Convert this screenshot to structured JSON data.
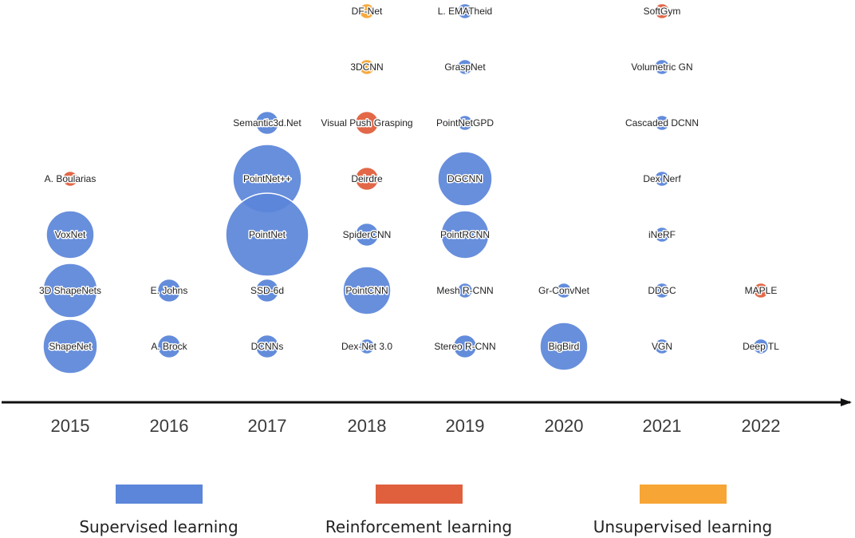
{
  "colors": {
    "supervised": "#5b86d9",
    "reinforcement": "#e0603e",
    "unsupervised": "#f7a534",
    "axis": "#111111"
  },
  "years": [
    "2015",
    "2016",
    "2017",
    "2018",
    "2019",
    "2020",
    "2021",
    "2022"
  ],
  "legend": [
    {
      "label": "Supervised learning",
      "category": "supervised"
    },
    {
      "label": "Reinforcement learning",
      "category": "reinforcement"
    },
    {
      "label": "Unsupervised learning",
      "category": "unsupervised"
    }
  ],
  "works": [
    {
      "label": "A. Boularias",
      "year": "2015",
      "row": 3,
      "category": "reinforcement",
      "size": "tiny"
    },
    {
      "label": "VoxNet",
      "year": "2015",
      "row": 4,
      "category": "supervised",
      "size": "medium"
    },
    {
      "label": "3D ShapeNets",
      "year": "2015",
      "row": 5,
      "category": "supervised",
      "size": "large"
    },
    {
      "label": "ShapeNet",
      "year": "2015",
      "row": 6,
      "category": "supervised",
      "size": "large"
    },
    {
      "label": "E. Johns",
      "year": "2016",
      "row": 5,
      "category": "supervised",
      "size": "small"
    },
    {
      "label": "A. Brock",
      "year": "2016",
      "row": 6,
      "category": "supervised",
      "size": "small"
    },
    {
      "label": "Semantic3d.Net",
      "year": "2017",
      "row": 2,
      "category": "supervised",
      "size": "small"
    },
    {
      "label": "PointNet++",
      "year": "2017",
      "row": 3,
      "category": "supervised",
      "size": "xlarge"
    },
    {
      "label": "PointNet",
      "year": "2017",
      "row": 4,
      "category": "supervised",
      "size": "xxlarge"
    },
    {
      "label": "SSD-6d",
      "year": "2017",
      "row": 5,
      "category": "supervised",
      "size": "small"
    },
    {
      "label": "DCNNs",
      "year": "2017",
      "row": 6,
      "category": "supervised",
      "size": "small"
    },
    {
      "label": "DF-Net",
      "year": "2018",
      "row": 0,
      "category": "unsupervised",
      "size": "tiny"
    },
    {
      "label": "3DCNN",
      "year": "2018",
      "row": 1,
      "category": "unsupervised",
      "size": "tiny"
    },
    {
      "label": "Visual Push Grasping",
      "year": "2018",
      "row": 2,
      "category": "reinforcement",
      "size": "small"
    },
    {
      "label": "Deirdre",
      "year": "2018",
      "row": 3,
      "category": "reinforcement",
      "size": "small"
    },
    {
      "label": "SpiderCNN",
      "year": "2018",
      "row": 4,
      "category": "supervised",
      "size": "small"
    },
    {
      "label": "PointCNN",
      "year": "2018",
      "row": 5,
      "category": "supervised",
      "size": "medium"
    },
    {
      "label": "Dex-Net 3.0",
      "year": "2018",
      "row": 6,
      "category": "supervised",
      "size": "tiny"
    },
    {
      "label": "L. EMATheid",
      "year": "2019",
      "row": 0,
      "category": "supervised",
      "size": "tiny"
    },
    {
      "label": "GraspNet",
      "year": "2019",
      "row": 1,
      "category": "supervised",
      "size": "tiny"
    },
    {
      "label": "PointNetGPD",
      "year": "2019",
      "row": 2,
      "category": "supervised",
      "size": "tiny"
    },
    {
      "label": "DGCNN",
      "year": "2019",
      "row": 3,
      "category": "supervised",
      "size": "large"
    },
    {
      "label": "PointRCNN",
      "year": "2019",
      "row": 4,
      "category": "supervised",
      "size": "medium"
    },
    {
      "label": "Mesh R-CNN",
      "year": "2019",
      "row": 5,
      "category": "supervised",
      "size": "tiny"
    },
    {
      "label": "Stereo R-CNN",
      "year": "2019",
      "row": 6,
      "category": "supervised",
      "size": "small"
    },
    {
      "label": "Gr-ConvNet",
      "year": "2020",
      "row": 5,
      "category": "supervised",
      "size": "tiny"
    },
    {
      "label": "BigBird",
      "year": "2020",
      "row": 6,
      "category": "supervised",
      "size": "medium"
    },
    {
      "label": "SoftGym",
      "year": "2021",
      "row": 0,
      "category": "reinforcement",
      "size": "tiny"
    },
    {
      "label": "Volumetric GN",
      "year": "2021",
      "row": 1,
      "category": "supervised",
      "size": "tiny"
    },
    {
      "label": "Cascaded DCNN",
      "year": "2021",
      "row": 2,
      "category": "supervised",
      "size": "tiny"
    },
    {
      "label": "Dex Nerf",
      "year": "2021",
      "row": 3,
      "category": "supervised",
      "size": "tiny"
    },
    {
      "label": "iNeRF",
      "year": "2021",
      "row": 4,
      "category": "supervised",
      "size": "tiny"
    },
    {
      "label": "DDGC",
      "year": "2021",
      "row": 5,
      "category": "supervised",
      "size": "tiny"
    },
    {
      "label": "VGN",
      "year": "2021",
      "row": 6,
      "category": "supervised",
      "size": "tiny"
    },
    {
      "label": "MAPLE",
      "year": "2022",
      "row": 5,
      "category": "reinforcement",
      "size": "tiny"
    },
    {
      "label": "Deep TL",
      "year": "2022",
      "row": 6,
      "category": "supervised",
      "size": "tiny"
    }
  ]
}
